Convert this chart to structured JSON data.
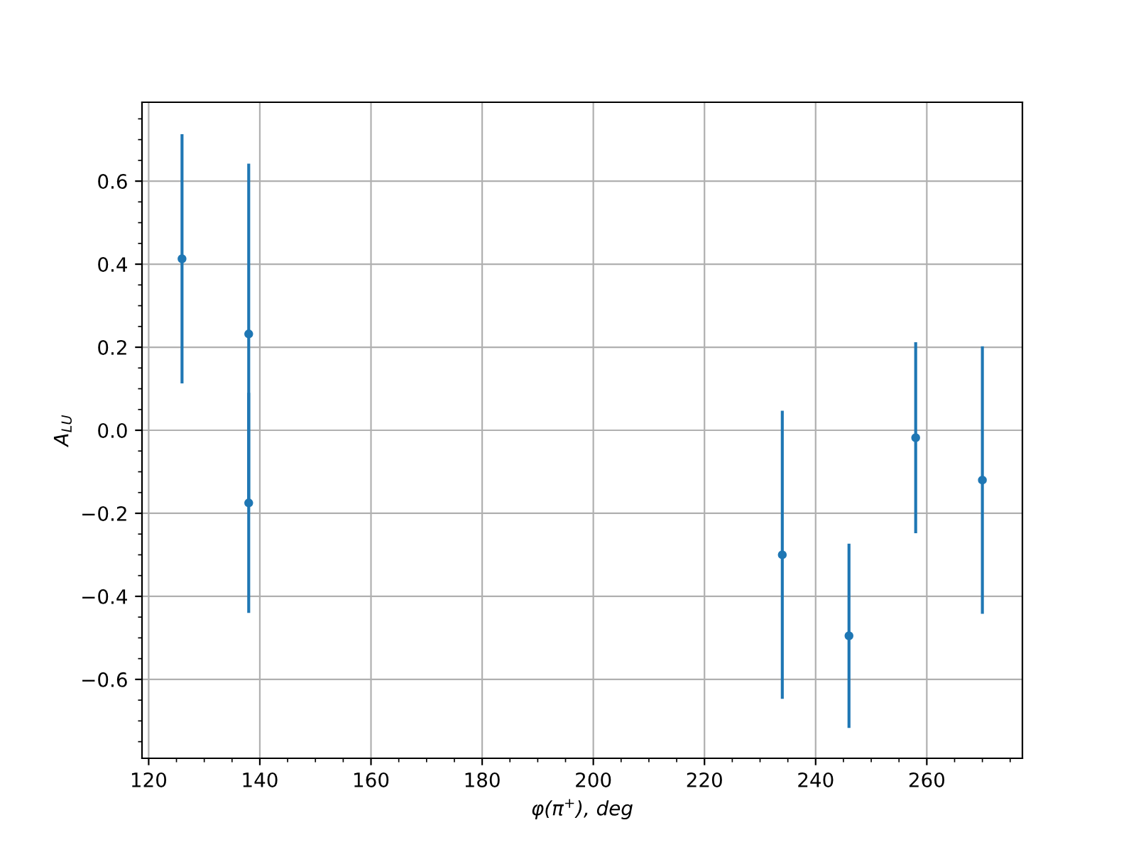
{
  "chart_data": {
    "type": "scatter",
    "xlabel": "φ(π$^{+}$), deg",
    "ylabel": "A$_{LU}$",
    "x": [
      126,
      138,
      138,
      234,
      246,
      258,
      270
    ],
    "series": [
      {
        "color": "#1f77b4",
        "values": [
          0.413,
          0.232,
          -0.175,
          -0.3,
          -0.495,
          -0.018,
          -0.12
        ],
        "errors": [
          0.3,
          0.41,
          0.265,
          0.347,
          0.222,
          0.23,
          0.322
        ]
      }
    ],
    "xlim": [
      118.8,
      277.2
    ],
    "ylim": [
      -0.79,
      0.79
    ],
    "xticks": [
      120,
      140,
      160,
      180,
      200,
      220,
      240,
      260
    ],
    "yticks": [
      {
        "value": -0.6,
        "label": "−0.6"
      },
      {
        "value": -0.4,
        "label": "−0.4"
      },
      {
        "value": -0.2,
        "label": "−0.2"
      },
      {
        "value": 0,
        "label": "0.0"
      },
      0.2,
      0.4,
      0.6
    ],
    "grid": true,
    "marker": "circle"
  }
}
